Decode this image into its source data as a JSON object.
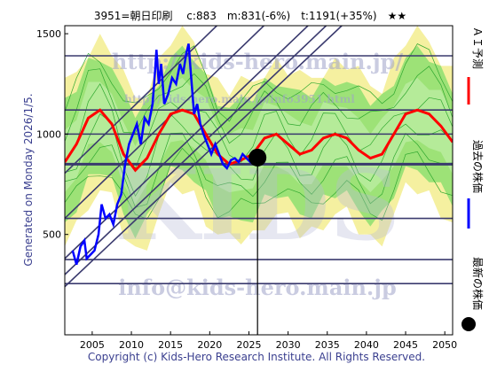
{
  "header": {
    "title": "3951=朝日印刷　 c:883　m:831(-6%)　t:1191(+35%)　★★"
  },
  "side": {
    "generated": "Generated on Monday 2026/1/5.",
    "legend_ai": "ＡＩ予測",
    "legend_past": "過去の株価",
    "legend_latest": "最新の株価"
  },
  "watermarks": {
    "url_main": "http://kids-hero.main.jp/",
    "url_sub": "http://kids-hero.main.jp/info3951.html",
    "big": "KIDS",
    "email": "info@kids-hero.main.jp"
  },
  "footer": {
    "copyright": "Copyright (c) Kids-Hero Research Institute. All Rights Reserved."
  },
  "colors": {
    "ai_line": "#ff0000",
    "past_line": "#0000ff",
    "latest_dot": "#000000",
    "band_green": "#7fdd6a",
    "band_yellow": "#f5f0a0",
    "channel_line": "#3a3a6e"
  },
  "chart_data": {
    "type": "line",
    "title": "3951=朝日印刷",
    "xlim": [
      2001.5,
      2051
    ],
    "ylim": [
      0,
      1540
    ],
    "x_ticks": [
      2005,
      2010,
      2015,
      2020,
      2025,
      2030,
      2035,
      2040,
      2045,
      2050
    ],
    "y_ticks": [
      500,
      1000,
      1500
    ],
    "current_price": 883,
    "median_price": 831,
    "median_change": "-6%",
    "target_price": 1191,
    "target_change": "+35%",
    "rating": "★★",
    "latest_point": {
      "x": 2026.1,
      "y": 883
    },
    "horizontal_levels": [
      1390,
      1120,
      1000,
      850,
      580,
      375,
      255
    ],
    "channel_lines": [
      {
        "x": [
          2001.5,
          2051
        ],
        "y": [
          805,
          2680
        ]
      },
      {
        "x": [
          2001.5,
          2051
        ],
        "y": [
          580,
          2450
        ]
      },
      {
        "x": [
          2001.5,
          2051
        ],
        "y": [
          380,
          2230
        ]
      },
      {
        "x": [
          2001.5,
          2051
        ],
        "y": [
          300,
          2140
        ]
      },
      {
        "x": [
          2001.5,
          2051
        ],
        "y": [
          240,
          2060
        ]
      }
    ],
    "series": [
      {
        "name": "過去の株価",
        "x": [
          2002.5,
          2003.0,
          2003.5,
          2004.0,
          2004.3,
          2004.8,
          2005.3,
          2005.8,
          2006.2,
          2006.7,
          2007.2,
          2007.7,
          2008.2,
          2008.7,
          2009.2,
          2009.7,
          2010.2,
          2010.7,
          2011.2,
          2011.7,
          2012.2,
          2012.7,
          2013.0,
          2013.2,
          2013.5,
          2013.8,
          2014.2,
          2014.7,
          2015.2,
          2015.7,
          2016.2,
          2016.6,
          2017.0,
          2017.3,
          2017.6,
          2018.0,
          2018.4,
          2018.8,
          2019.2,
          2019.7,
          2020.2,
          2020.7,
          2021.2,
          2021.7,
          2022.2,
          2022.7,
          2023.2,
          2023.7,
          2024.2,
          2024.7,
          2025.2,
          2025.6,
          2026.0
        ],
        "y": [
          420,
          350,
          440,
          470,
          380,
          400,
          420,
          500,
          650,
          580,
          600,
          550,
          650,
          700,
          850,
          950,
          1000,
          1050,
          950,
          1080,
          1050,
          1150,
          1300,
          1420,
          1250,
          1350,
          1150,
          1200,
          1280,
          1250,
          1350,
          1300,
          1400,
          1450,
          1300,
          1100,
          1150,
          1050,
          1000,
          950,
          900,
          950,
          900,
          850,
          830,
          870,
          880,
          860,
          900,
          880,
          860,
          870,
          883
        ]
      },
      {
        "name": "ＡＩ予測",
        "x": [
          2001.5,
          2003.0,
          2004.5,
          2006.0,
          2007.5,
          2009.0,
          2010.5,
          2012.0,
          2013.5,
          2015.0,
          2016.5,
          2018.0,
          2019.5,
          2021.0,
          2022.5,
          2024.0,
          2025.5,
          2027.0,
          2028.5,
          2030.0,
          2031.5,
          2033.0,
          2034.5,
          2036.0,
          2037.5,
          2039.0,
          2040.5,
          2042.0,
          2043.5,
          2045.0,
          2046.5,
          2048.0,
          2049.5,
          2051.0
        ],
        "y": [
          860,
          950,
          1080,
          1120,
          1050,
          900,
          820,
          880,
          1000,
          1100,
          1120,
          1100,
          1000,
          900,
          850,
          870,
          900,
          980,
          1000,
          950,
          900,
          920,
          980,
          1000,
          980,
          920,
          880,
          900,
          1000,
          1100,
          1120,
          1100,
          1040,
          960
        ]
      }
    ]
  }
}
